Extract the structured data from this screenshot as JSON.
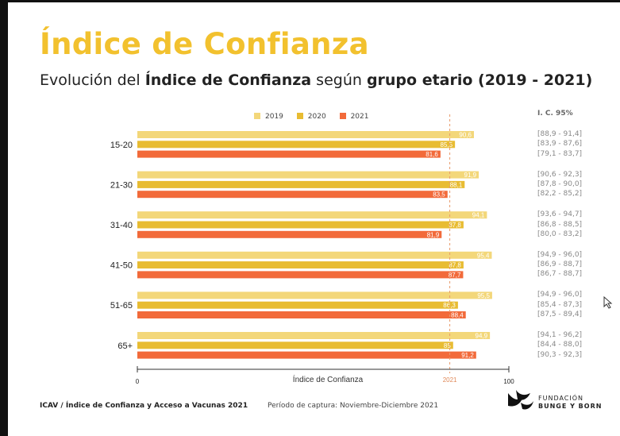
{
  "title": "Índice de Confianza",
  "subtitle": {
    "p1": "Evolución del ",
    "b1": "Índice de Confianza",
    "p2": " según ",
    "b2": "grupo etario (2019 - 2021)"
  },
  "ci_header": "I. C. 95%",
  "footer": {
    "left": "ICAV / Índice de Confianza y Acceso a Vacunas 2021",
    "middle": "Período de captura: Noviembre-Diciembre 2021"
  },
  "logo": {
    "line1": "FUNDACIÓN",
    "line2": "BUNGE Y BORN",
    "icon": "bunge-born-logo-icon"
  },
  "colors": {
    "title": "#f2c12e",
    "s2019": "#f3d77a",
    "s2020": "#e8bc32",
    "s2021": "#f26a3a"
  },
  "chart_data": {
    "type": "bar",
    "orientation": "horizontal",
    "xlabel": "Índice de Confianza",
    "xlim": [
      0,
      100
    ],
    "x_ticks": [
      "0",
      "100"
    ],
    "reference_line": {
      "value": 84.1,
      "label": "2021"
    },
    "categories": [
      "15-20",
      "21-30",
      "31-40",
      "41-50",
      "51-65",
      "65+"
    ],
    "series": [
      {
        "name": "2019",
        "values": [
          90.6,
          91.9,
          94.1,
          95.4,
          95.5,
          94.9
        ],
        "labels": [
          "90,6",
          "91,9",
          "94,1",
          "95,4",
          "95,5",
          "94,9"
        ],
        "ci": [
          "[88,9 - 91,4]",
          "[90,6 - 92,3]",
          "[93,6 - 94,7]",
          "[94,9 - 96,0]",
          "[94,9 - 96,0]",
          "[94,1 - 96,2]"
        ]
      },
      {
        "name": "2020",
        "values": [
          85.5,
          88.1,
          87.8,
          87.8,
          86.3,
          85
        ],
        "labels": [
          "85,5",
          "88,1",
          "87,8",
          "87,8",
          "86,3",
          "85"
        ],
        "ci": [
          "[83,9 - 87,6]",
          "[87,8 - 90,0]",
          "[86,8 - 88,5]",
          "[86,9 - 88,7]",
          "[85,4 - 87,3]",
          "[84,4 - 88,0]"
        ]
      },
      {
        "name": "2021",
        "values": [
          81.6,
          83.5,
          81.9,
          87.7,
          88.4,
          91.2
        ],
        "labels": [
          "81,6",
          "83,5",
          "81,9",
          "87,7",
          "88,4",
          "91,2"
        ],
        "ci": [
          "[79,1 - 83,7]",
          "[82,2 - 85,2]",
          "[80,0 - 83,2]",
          "[86,7 - 88,7]",
          "[87,5 - 89,4]",
          "[90,3 - 92,3]"
        ]
      }
    ],
    "legend_position": "top"
  }
}
